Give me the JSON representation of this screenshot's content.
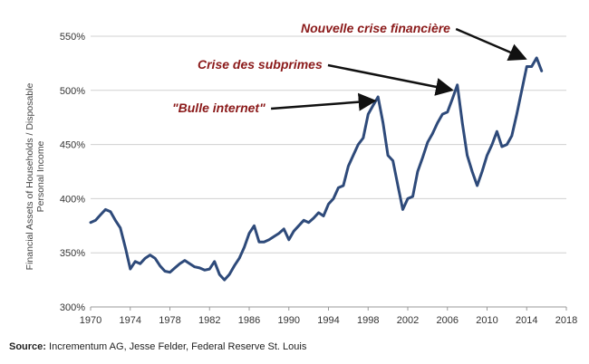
{
  "chart_data": {
    "type": "line",
    "ylabel_lines": [
      "Financial Assets of Households / Disposable",
      "Personal Income"
    ],
    "xlabel": "",
    "xlim": [
      1970,
      2018
    ],
    "ylim": [
      300,
      550
    ],
    "x_ticks": [
      1970,
      1974,
      1978,
      1982,
      1986,
      1990,
      1994,
      1998,
      2002,
      2006,
      2010,
      2014,
      2018
    ],
    "y_ticks": [
      300,
      350,
      400,
      450,
      500,
      550
    ],
    "y_tick_labels": [
      "300%",
      "350%",
      "400%",
      "450%",
      "500%",
      "550%"
    ],
    "grid": "horizontal",
    "line_color": "#2e4a7a",
    "series": [
      {
        "name": "",
        "x": [
          1970.0,
          1970.5,
          1971.0,
          1971.5,
          1972.0,
          1972.5,
          1973.0,
          1973.5,
          1974.0,
          1974.5,
          1975.0,
          1975.5,
          1976.0,
          1976.5,
          1977.0,
          1977.5,
          1978.0,
          1978.5,
          1979.0,
          1979.5,
          1980.0,
          1980.5,
          1981.0,
          1981.5,
          1982.0,
          1982.5,
          1983.0,
          1983.5,
          1984.0,
          1984.5,
          1985.0,
          1985.5,
          1986.0,
          1986.5,
          1987.0,
          1987.5,
          1988.0,
          1988.5,
          1989.0,
          1989.5,
          1990.0,
          1990.5,
          1991.0,
          1991.5,
          1992.0,
          1992.5,
          1993.0,
          1993.5,
          1994.0,
          1994.5,
          1995.0,
          1995.5,
          1996.0,
          1996.5,
          1997.0,
          1997.5,
          1998.0,
          1998.5,
          1999.0,
          1999.5,
          2000.0,
          2000.5,
          2001.0,
          2001.5,
          2002.0,
          2002.5,
          2003.0,
          2003.5,
          2004.0,
          2004.5,
          2005.0,
          2005.5,
          2006.0,
          2006.5,
          2007.0,
          2007.5,
          2008.0,
          2008.5,
          2009.0,
          2009.5,
          2010.0,
          2010.5,
          2011.0,
          2011.5,
          2012.0,
          2012.5,
          2013.0,
          2013.5,
          2014.0,
          2014.5,
          2015.0,
          2015.5
        ],
        "values": [
          378,
          380,
          385,
          390,
          388,
          380,
          373,
          355,
          335,
          342,
          340,
          345,
          348,
          345,
          338,
          333,
          332,
          336,
          340,
          343,
          340,
          337,
          336,
          334,
          335,
          342,
          330,
          325,
          330,
          338,
          345,
          355,
          368,
          375,
          360,
          360,
          362,
          365,
          368,
          372,
          362,
          370,
          375,
          380,
          378,
          382,
          387,
          384,
          395,
          400,
          410,
          412,
          430,
          440,
          450,
          456,
          478,
          486,
          494,
          470,
          440,
          435,
          412,
          390,
          400,
          402,
          425,
          438,
          452,
          460,
          470,
          478,
          480,
          492,
          505,
          470,
          440,
          425,
          412,
          425,
          440,
          450,
          462,
          448,
          450,
          458,
          478,
          500,
          522,
          522,
          530,
          518
        ]
      }
    ],
    "annotations": [
      {
        "text": "Nouvelle crise financière",
        "target_x": 2014.2,
        "target_y": 531
      },
      {
        "text": "Crise des subprimes",
        "target_x": 2006.8,
        "target_y": 502
      },
      {
        "text": "\"Bulle internet\"",
        "target_x": 1999.0,
        "target_y": 492
      }
    ]
  },
  "footer": {
    "source_label": "Source:",
    "source_text": "Incrementum AG, Jesse Felder, Federal Reserve St. Louis"
  }
}
